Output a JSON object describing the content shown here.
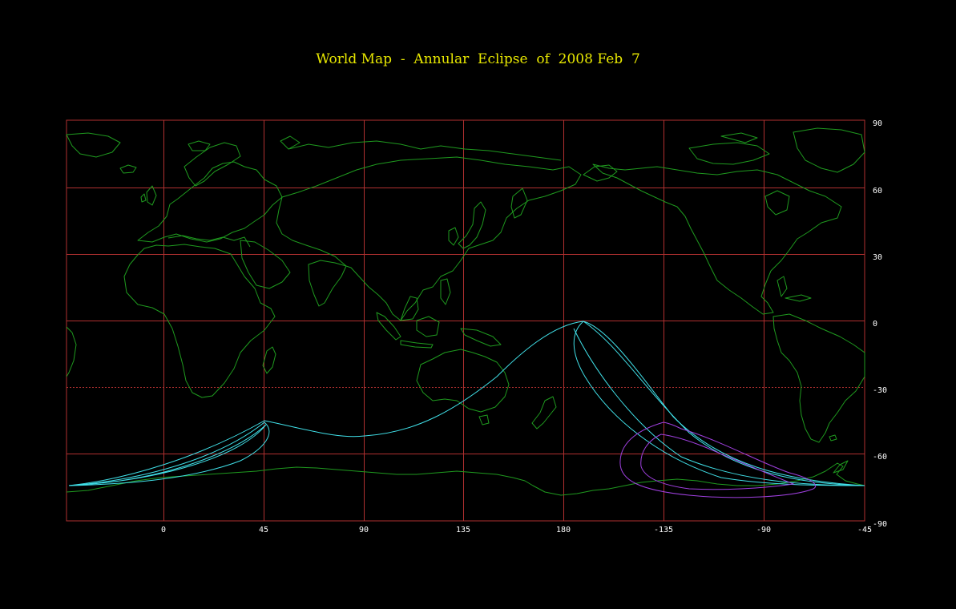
{
  "title": "World Map  -  Annular  Eclipse  of  2008 Feb  7",
  "colors": {
    "background": "#000000",
    "title": "#e8e800",
    "grid": "#b03030",
    "coastline": "#1f9a1f",
    "central_path": "#40e0e8",
    "penumbral_limits": "#a040e0",
    "tick_labels": "#ffffff"
  },
  "axes": {
    "x_ticks": [
      "0",
      "45",
      "90",
      "135",
      "180",
      "-135",
      "-90",
      "-45"
    ],
    "y_ticks": [
      "90",
      "60",
      "30",
      "0",
      "-30",
      "-60",
      "-90"
    ]
  }
}
